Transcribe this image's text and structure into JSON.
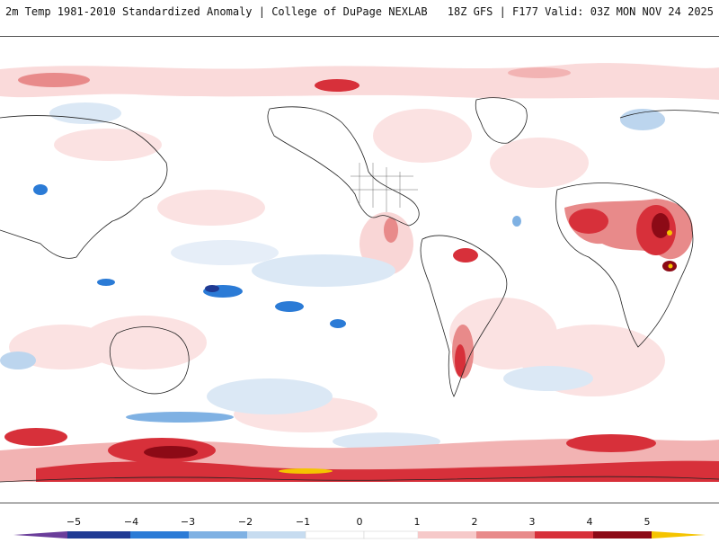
{
  "header": {
    "title": "2m Temp 1981-2010 Standardized Anomaly | College of DuPage NEXLAB",
    "run_info": "18Z GFS | F177 Valid: 03Z MON NOV 24 2025"
  },
  "map": {
    "projection": "Pacific-centered equirectangular",
    "field": "2m temperature standardized anomaly"
  },
  "colorbar": {
    "ticks": [
      "−5",
      "−4",
      "−3",
      "−2",
      "−1",
      "0",
      "1",
      "2",
      "3",
      "4",
      "5"
    ],
    "colors": [
      "#6a3d9a",
      "#1f3a93",
      "#2b7bd6",
      "#7fb1e3",
      "#c7dcf0",
      "#ffffff",
      "#ffffff",
      "#f6c9c9",
      "#e88a8a",
      "#d7303a",
      "#8c0a16",
      "#f5c400"
    ]
  }
}
